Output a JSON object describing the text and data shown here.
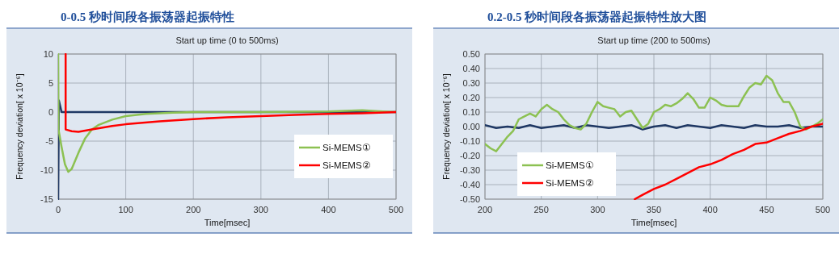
{
  "chart_data": [
    {
      "type": "line",
      "title": "0-0.5 秒时间段各振荡器起振特性",
      "subtitle": "Start up time (0 to 500ms)",
      "xlabel": "Time[msec]",
      "ylabel": "Frequency deviation[ x 10⁻⁶]",
      "xlim": [
        0,
        500
      ],
      "xticks": [
        0,
        100,
        200,
        300,
        400,
        500
      ],
      "ylim": [
        -15,
        10
      ],
      "yticks": [
        -15,
        -10,
        -5,
        0,
        5,
        10
      ],
      "grid": true,
      "legend": "right",
      "line_style": "solid",
      "series": [
        {
          "color": "#1f3864",
          "x": [
            0,
            1,
            3,
            5,
            100,
            200,
            300,
            400,
            500
          ],
          "values": [
            -15,
            2,
            1,
            0,
            0,
            0,
            0,
            0,
            0
          ]
        },
        {
          "name": "Si-MEMS①",
          "color": "#8cc152",
          "x": [
            0,
            0.5,
            5,
            10,
            15,
            20,
            30,
            40,
            50,
            60,
            80,
            100,
            130,
            170,
            200,
            300,
            400,
            450,
            480,
            500
          ],
          "values": [
            10,
            -3,
            -6,
            -9,
            -10.3,
            -9.8,
            -7,
            -4.5,
            -3,
            -2.2,
            -1.3,
            -0.7,
            -0.3,
            -0.1,
            0,
            0,
            0.1,
            0.3,
            0.1,
            0
          ]
        },
        {
          "name": "Si-MEMS②",
          "color": "#ff0000",
          "x": [
            11,
            11,
            20,
            30,
            50,
            80,
            100,
            150,
            200,
            250,
            300,
            350,
            400,
            450,
            500
          ],
          "values": [
            10,
            -3,
            -3.3,
            -3.4,
            -3,
            -2.4,
            -2.1,
            -1.6,
            -1.2,
            -0.9,
            -0.7,
            -0.5,
            -0.3,
            -0.2,
            0
          ]
        }
      ]
    },
    {
      "type": "line",
      "title": "0.2-0.5 秒时间段各振荡器起振特性放大图",
      "subtitle": "Start up time (200 to 500ms)",
      "xlabel": "Time[msec]",
      "ylabel": "Frequency deviation[ x 10⁻⁶]",
      "xlim": [
        200,
        500
      ],
      "xticks": [
        200,
        250,
        300,
        350,
        400,
        450,
        500
      ],
      "ylim": [
        -0.5,
        0.5
      ],
      "yticks": [
        {
          "value": -0.5,
          "label": "-0.50"
        },
        {
          "value": -0.4,
          "label": "-0.40"
        },
        {
          "value": -0.3,
          "label": "-0.30"
        },
        {
          "value": -0.2,
          "label": "-0.20"
        },
        {
          "value": -0.1,
          "label": "-0.10"
        },
        {
          "value": 0,
          "label": "0.00"
        },
        {
          "value": 0.1,
          "label": "0.10"
        },
        {
          "value": 0.2,
          "label": "0.20"
        },
        {
          "value": 0.3,
          "label": "0.30"
        },
        {
          "value": 0.4,
          "label": "0.40"
        },
        {
          "value": 0.5,
          "label": "0.50"
        }
      ],
      "grid": true,
      "legend": "bottom left",
      "line_style": "solid",
      "series": [
        {
          "color": "#1f3864",
          "x": [
            200,
            210,
            220,
            230,
            240,
            250,
            260,
            270,
            280,
            290,
            300,
            310,
            320,
            330,
            340,
            350,
            360,
            370,
            380,
            390,
            400,
            410,
            420,
            430,
            440,
            450,
            460,
            470,
            480,
            490,
            500
          ],
          "values": [
            0.01,
            -0.01,
            0.0,
            -0.01,
            0.01,
            -0.01,
            0.0,
            0.01,
            -0.01,
            0.01,
            0.0,
            -0.01,
            0.0,
            0.01,
            -0.02,
            0.0,
            0.01,
            -0.01,
            0.01,
            0.0,
            -0.01,
            0.01,
            0.0,
            -0.01,
            0.01,
            0.0,
            0.0,
            0.01,
            -0.01,
            0.0,
            0.0
          ]
        },
        {
          "name": "Si-MEMS①",
          "color": "#8cc152",
          "x": [
            200,
            205,
            210,
            215,
            220,
            225,
            230,
            235,
            240,
            245,
            250,
            255,
            260,
            265,
            270,
            275,
            280,
            285,
            290,
            295,
            300,
            305,
            310,
            315,
            320,
            325,
            330,
            335,
            340,
            345,
            350,
            355,
            360,
            365,
            370,
            375,
            380,
            385,
            390,
            395,
            400,
            405,
            410,
            415,
            420,
            425,
            430,
            435,
            440,
            445,
            450,
            455,
            460,
            465,
            470,
            475,
            480,
            485,
            490,
            495,
            500
          ],
          "values": [
            -0.12,
            -0.15,
            -0.17,
            -0.12,
            -0.07,
            -0.03,
            0.05,
            0.07,
            0.09,
            0.07,
            0.12,
            0.15,
            0.12,
            0.1,
            0.05,
            0.01,
            -0.01,
            -0.02,
            0.02,
            0.1,
            0.17,
            0.14,
            0.13,
            0.12,
            0.07,
            0.1,
            0.11,
            0.05,
            -0.01,
            0.02,
            0.1,
            0.12,
            0.15,
            0.14,
            0.16,
            0.19,
            0.23,
            0.19,
            0.13,
            0.13,
            0.2,
            0.18,
            0.15,
            0.14,
            0.14,
            0.14,
            0.21,
            0.27,
            0.3,
            0.29,
            0.35,
            0.32,
            0.23,
            0.17,
            0.17,
            0.1,
            0.0,
            -0.02,
            0.0,
            0.02,
            0.05
          ]
        },
        {
          "name": "Si-MEMS②",
          "color": "#ff0000",
          "x": [
            333,
            340,
            350,
            360,
            370,
            380,
            390,
            400,
            410,
            420,
            430,
            440,
            450,
            460,
            470,
            480,
            490,
            500
          ],
          "values": [
            -0.5,
            -0.47,
            -0.43,
            -0.4,
            -0.36,
            -0.32,
            -0.28,
            -0.26,
            -0.23,
            -0.19,
            -0.16,
            -0.12,
            -0.11,
            -0.08,
            -0.05,
            -0.03,
            0.0,
            0.02
          ]
        }
      ]
    }
  ]
}
